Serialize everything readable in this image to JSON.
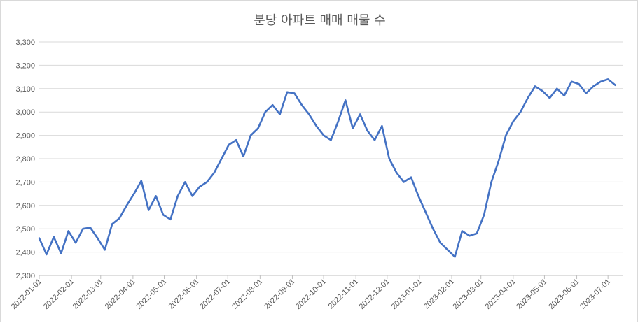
{
  "title": "분당 아파트 매매 매물 수",
  "chart_data": {
    "type": "line",
    "title": "분당 아파트 매매 매물 수",
    "xlabel": "",
    "ylabel": "",
    "ylim": [
      2300,
      3300
    ],
    "yticks": [
      2300,
      2400,
      2500,
      2600,
      2700,
      2800,
      2900,
      3000,
      3100,
      3200,
      3300
    ],
    "ytick_labels": [
      "2,300",
      "2,400",
      "2,500",
      "2,600",
      "2,700",
      "2,800",
      "2,900",
      "3,000",
      "3,100",
      "3,200",
      "3,300"
    ],
    "xtick_labels": [
      "2022-01-01",
      "2022-02-01",
      "2022-03-01",
      "2022-04-01",
      "2022-05-01",
      "2022-06-01",
      "2022-07-01",
      "2022-08-01",
      "2022-09-01",
      "2022-10-01",
      "2022-11-01",
      "2022-12-01",
      "2023-01-01",
      "2023-02-01",
      "2023-03-01",
      "2023-04-01",
      "2023-05-01",
      "2023-06-01",
      "2023-07-01"
    ],
    "grid": true,
    "line_color": "#4472C4",
    "series": [
      {
        "x": [
          "2022-01-01",
          "2022-01-08",
          "2022-01-15",
          "2022-01-22",
          "2022-01-29",
          "2022-02-05",
          "2022-02-12",
          "2022-02-19",
          "2022-02-26",
          "2022-03-05",
          "2022-03-12",
          "2022-03-19",
          "2022-03-26",
          "2022-04-02",
          "2022-04-09",
          "2022-04-16",
          "2022-04-23",
          "2022-04-30",
          "2022-05-07",
          "2022-05-14",
          "2022-05-21",
          "2022-05-28",
          "2022-06-04",
          "2022-06-11",
          "2022-06-18",
          "2022-06-25",
          "2022-07-02",
          "2022-07-09",
          "2022-07-16",
          "2022-07-23",
          "2022-07-30",
          "2022-08-06",
          "2022-08-13",
          "2022-08-20",
          "2022-08-27",
          "2022-09-03",
          "2022-09-10",
          "2022-09-17",
          "2022-09-24",
          "2022-10-01",
          "2022-10-08",
          "2022-10-15",
          "2022-10-22",
          "2022-10-29",
          "2022-11-05",
          "2022-11-12",
          "2022-11-19",
          "2022-11-26",
          "2022-12-03",
          "2022-12-10",
          "2022-12-17",
          "2022-12-24",
          "2022-12-31",
          "2023-01-07",
          "2023-01-14",
          "2023-01-21",
          "2023-01-28",
          "2023-02-04",
          "2023-02-11",
          "2023-02-18",
          "2023-02-25",
          "2023-03-04",
          "2023-03-11",
          "2023-03-18",
          "2023-03-25",
          "2023-04-01",
          "2023-04-08",
          "2023-04-15",
          "2023-04-22",
          "2023-04-29",
          "2023-05-06",
          "2023-05-13",
          "2023-05-20",
          "2023-05-27",
          "2023-06-03",
          "2023-06-10",
          "2023-06-17",
          "2023-06-24",
          "2023-07-01",
          "2023-07-08"
        ],
        "values": [
          2460,
          2390,
          2465,
          2395,
          2490,
          2440,
          2500,
          2505,
          2460,
          2410,
          2520,
          2545,
          2600,
          2650,
          2705,
          2580,
          2640,
          2560,
          2540,
          2640,
          2700,
          2640,
          2680,
          2700,
          2740,
          2800,
          2860,
          2880,
          2810,
          2900,
          2930,
          3000,
          3030,
          2990,
          3085,
          3080,
          3030,
          2990,
          2940,
          2900,
          2880,
          2960,
          3050,
          2930,
          2990,
          2920,
          2880,
          2940,
          2800,
          2740,
          2700,
          2720,
          2640,
          2570,
          2500,
          2440,
          2410,
          2380,
          2490,
          2470,
          2480,
          2560,
          2700,
          2790,
          2900,
          2960,
          3000,
          3060,
          3110,
          3090,
          3060,
          3100,
          3070,
          3130,
          3120,
          3080,
          3110,
          3130,
          3140,
          3115
        ]
      }
    ]
  }
}
